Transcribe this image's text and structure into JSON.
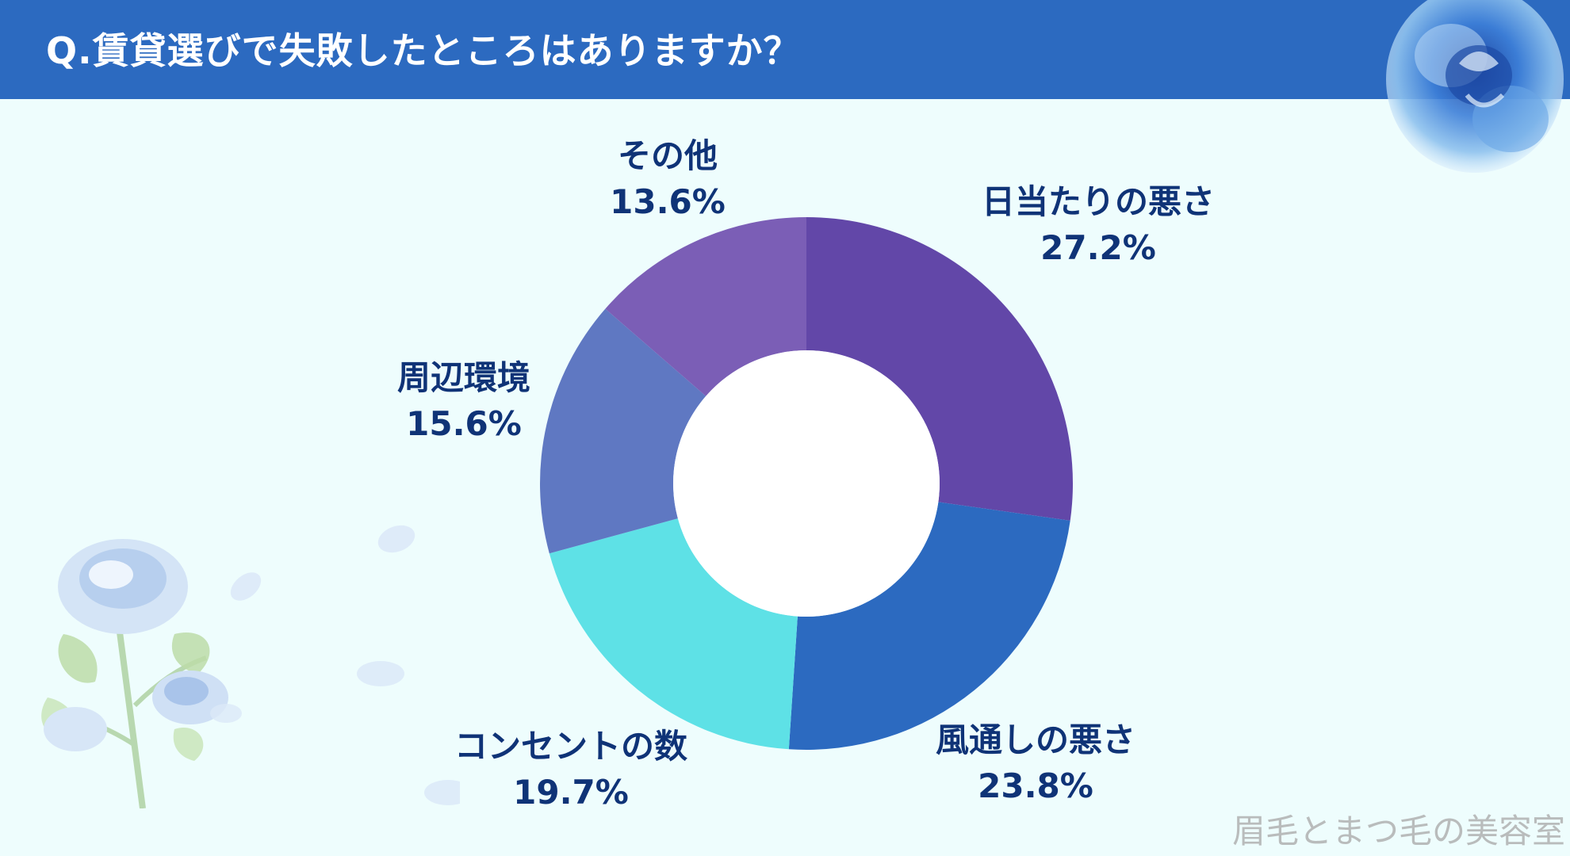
{
  "title": "Q.賃貸選びで失敗したところはありますか？",
  "watermark": "眉毛とまつ毛の美容室",
  "chart_data": {
    "type": "pie",
    "title": "Q.賃貸選びで失敗したところはありますか？",
    "donut": true,
    "start_angle_deg": 0,
    "direction": "clockwise",
    "slices": [
      {
        "label": "日当たりの悪さ",
        "value": 27.2,
        "value_label": "27.2%",
        "color": "#6247a8"
      },
      {
        "label": "風通しの悪さ",
        "value": 23.8,
        "value_label": "23.8%",
        "color": "#2c6ac0"
      },
      {
        "label": "コンセントの数",
        "value": 19.7,
        "value_label": "19.7%",
        "color": "#5ee1e6"
      },
      {
        "label": "周辺環境",
        "value": 15.6,
        "value_label": "15.6%",
        "color": "#5f78c2"
      },
      {
        "label": "その他",
        "value": 13.6,
        "value_label": "13.6%",
        "color": "#7b5eb6"
      }
    ],
    "colors": {
      "label_text": "#0f3377",
      "background": "#eefdfd",
      "header": "#2c6ac0"
    }
  }
}
